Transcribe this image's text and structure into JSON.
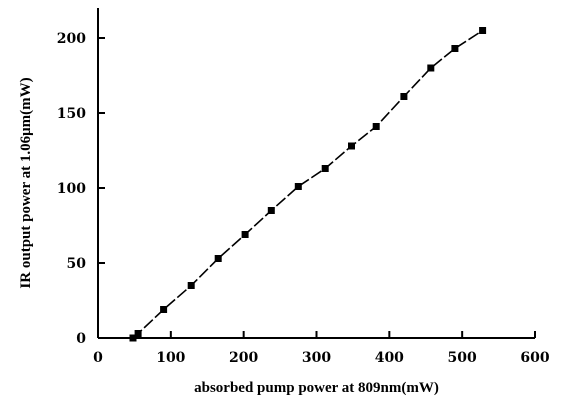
{
  "chart_data": {
    "type": "scatter",
    "title": "",
    "xlabel": "absorbed pump power at 809nm(mW)",
    "ylabel": "IR output power at 1.06μm(mW)",
    "xlim": [
      0,
      600
    ],
    "ylim": [
      0,
      220
    ],
    "x_ticks": [
      0,
      100,
      200,
      300,
      400,
      500,
      600
    ],
    "y_ticks": [
      0,
      50,
      100,
      150,
      200
    ],
    "grid": false,
    "series": [
      {
        "x": [
          48,
          55,
          90,
          128,
          165,
          202,
          238,
          275,
          312,
          348,
          382,
          420,
          457,
          490,
          528
        ],
        "y": [
          0,
          3,
          19,
          35,
          53,
          69,
          85,
          101,
          113,
          128,
          141,
          161,
          180,
          193,
          205
        ],
        "line": "dashed",
        "marker": "square",
        "color": "#000000"
      }
    ]
  }
}
